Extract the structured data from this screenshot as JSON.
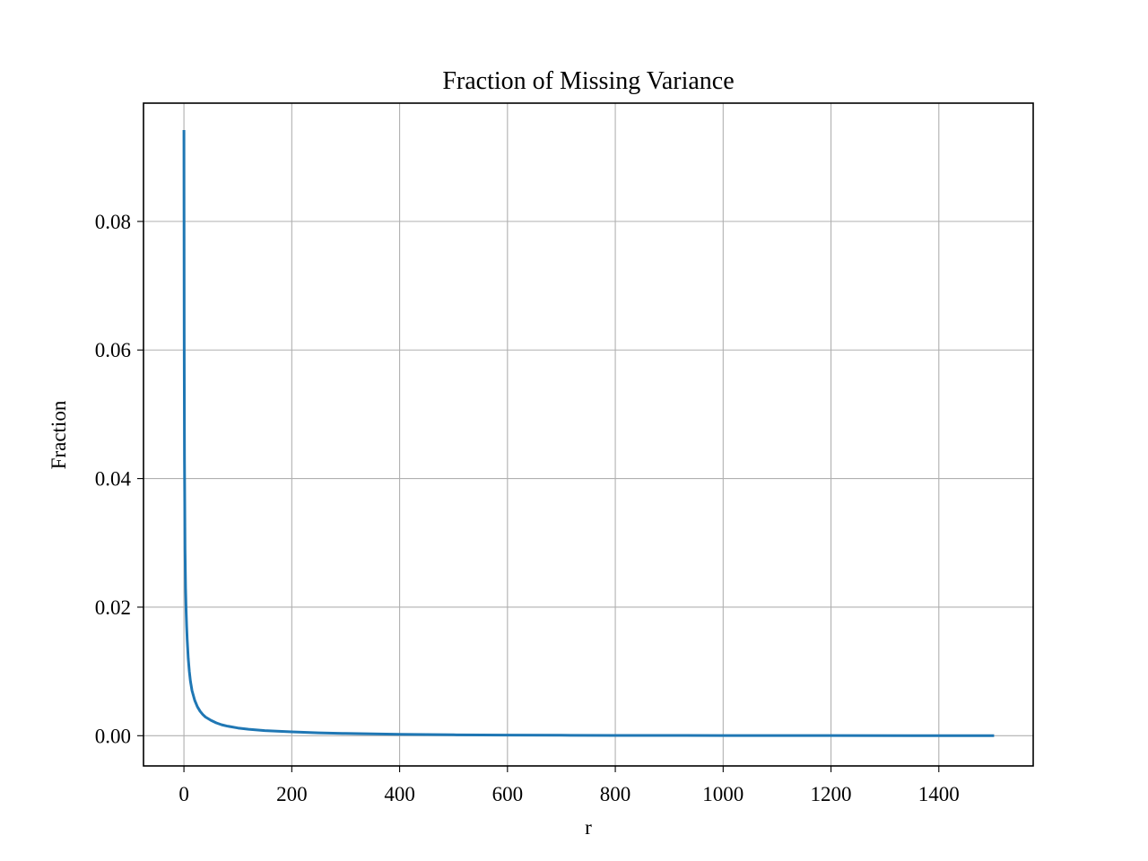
{
  "chart_data": {
    "type": "line",
    "title": "Fraction of Missing Variance",
    "xlabel": "r",
    "ylabel": "Fraction",
    "xlim": [
      -75,
      1575
    ],
    "ylim": [
      -0.0047,
      0.0984
    ],
    "xticks": [
      0,
      200,
      400,
      600,
      800,
      1000,
      1200,
      1400
    ],
    "xtick_labels": [
      "0",
      "200",
      "400",
      "600",
      "800",
      "1000",
      "1200",
      "1400"
    ],
    "yticks": [
      0.0,
      0.02,
      0.04,
      0.06,
      0.08
    ],
    "ytick_labels": [
      "0.00",
      "0.02",
      "0.04",
      "0.06",
      "0.08"
    ],
    "grid": true,
    "legend": "none",
    "series": [
      {
        "color": "#1f77b4",
        "x": [
          0,
          0.5,
          1,
          2,
          3,
          4,
          5,
          6,
          8,
          10,
          12,
          15,
          20,
          25,
          30,
          35,
          40,
          50,
          60,
          70,
          80,
          100,
          120,
          150,
          200,
          250,
          300,
          400,
          500,
          600,
          700,
          800,
          1000,
          1200,
          1400,
          1500
        ],
        "y": [
          0.094,
          0.06,
          0.043,
          0.029,
          0.023,
          0.0195,
          0.017,
          0.015,
          0.012,
          0.01,
          0.0085,
          0.007,
          0.0055,
          0.0045,
          0.0038,
          0.0033,
          0.0029,
          0.0024,
          0.002,
          0.0017,
          0.0015,
          0.0012,
          0.001,
          0.0008,
          0.0006,
          0.00045,
          0.00035,
          0.00022,
          0.00014,
          0.0001,
          7e-05,
          5e-05,
          3e-05,
          2e-05,
          1e-05,
          1e-05
        ]
      }
    ]
  }
}
